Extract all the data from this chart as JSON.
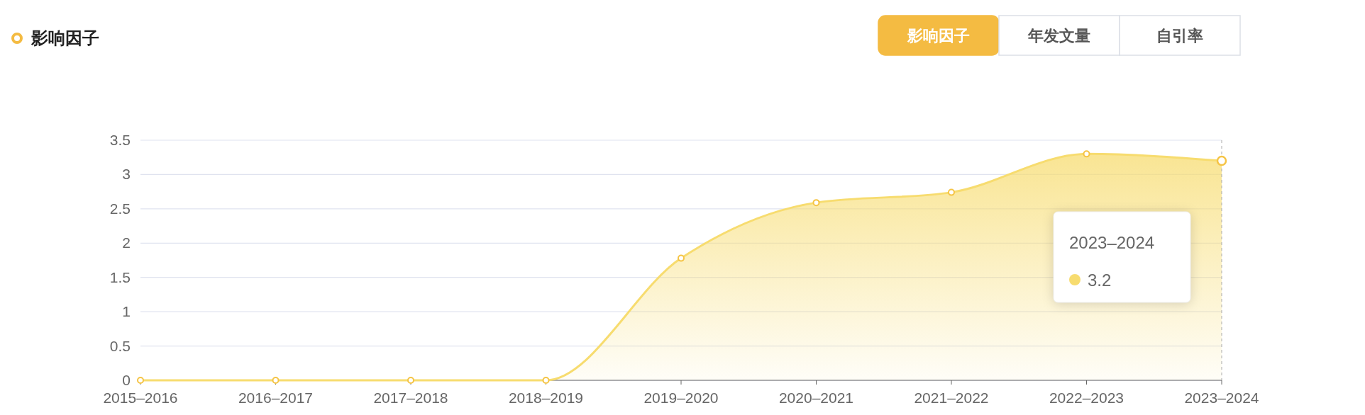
{
  "chart_data": {
    "type": "area",
    "title": "影响因子",
    "categories": [
      "2015–2016",
      "2016–2017",
      "2017–2018",
      "2018–2019",
      "2019–2020",
      "2020–2021",
      "2021–2022",
      "2022–2023",
      "2023–2024"
    ],
    "series": [
      {
        "color": "#f7dc6f",
        "values": [
          0,
          0,
          0,
          0,
          1.78,
          2.59,
          2.74,
          3.3,
          3.2
        ]
      }
    ],
    "ylim": [
      0,
      3.5
    ],
    "yticks": [
      0,
      0.5,
      1,
      1.5,
      2,
      2.5,
      3,
      3.5
    ],
    "grid": "y",
    "marker": "circle",
    "annotations": [
      "影响因子",
      "年发文量",
      "自引率",
      "2023–2024",
      "3.2"
    ]
  }
}
